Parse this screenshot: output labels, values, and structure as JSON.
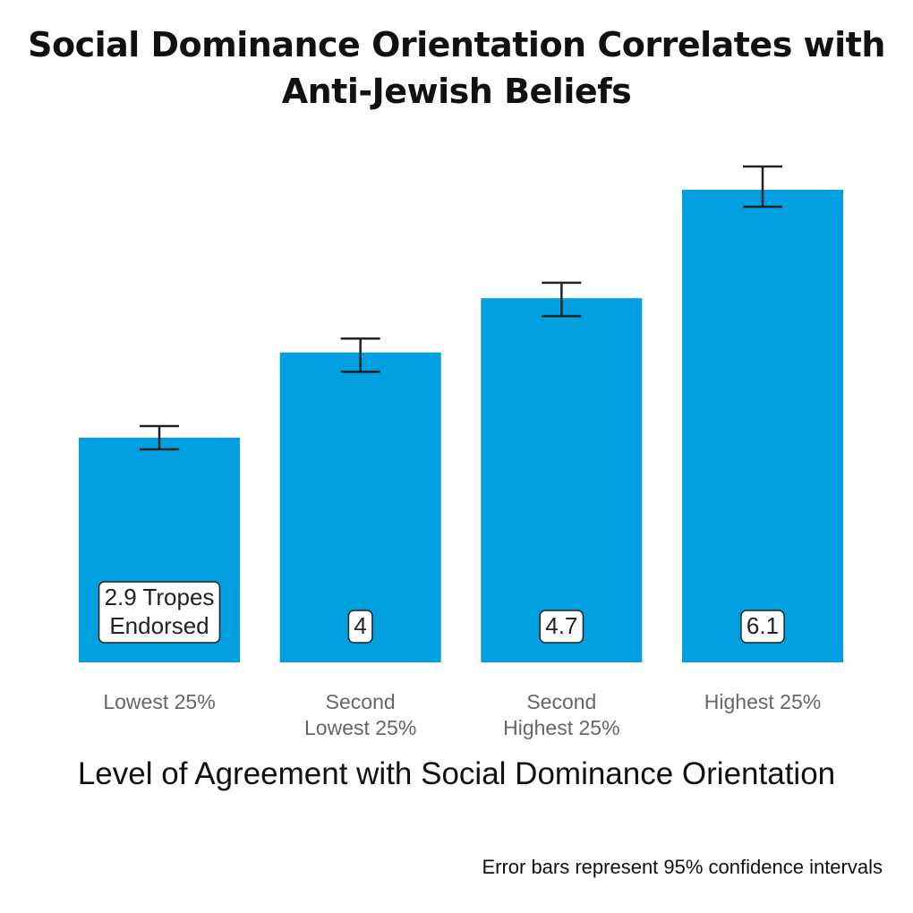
{
  "chart_data": {
    "type": "bar",
    "title": "Social Dominance Orientation Correlates with Anti-Jewish Beliefs",
    "xlabel": "Level of Agreement with Social Dominance Orientation",
    "ylabel": "",
    "categories": [
      [
        "Lowest 25%"
      ],
      [
        "Second",
        "Lowest 25%"
      ],
      [
        "Second",
        "Highest 25%"
      ],
      [
        "Highest 25%"
      ]
    ],
    "values": [
      2.9,
      4.0,
      4.7,
      6.1
    ],
    "data_labels": [
      [
        "2.9 Tropes",
        "Endorsed"
      ],
      [
        "4"
      ],
      [
        "4.7"
      ],
      [
        "6.1"
      ]
    ],
    "error_bars": [
      {
        "low": 2.75,
        "high": 3.05
      },
      {
        "low": 3.75,
        "high": 4.18
      },
      {
        "low": 4.47,
        "high": 4.9
      },
      {
        "low": 5.88,
        "high": 6.4
      }
    ],
    "ylim": [
      0,
      6.1
    ],
    "grid": false,
    "bar_color": "#009fdf",
    "note": "Error bars represent 95% confidence intervals"
  }
}
